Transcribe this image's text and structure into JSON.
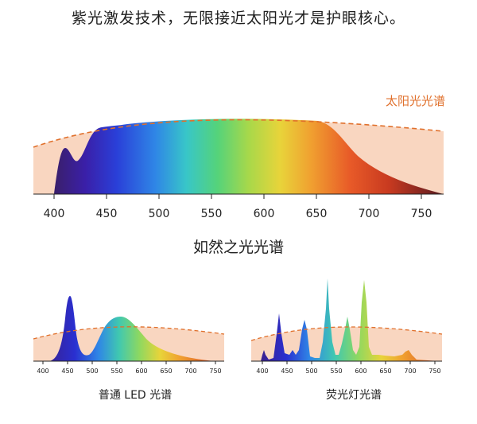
{
  "headline": "紫光激发技术，无限接近太阳光才是护眼核心。",
  "sun_label": "太阳光光谱",
  "subhead": "如然之光光谱",
  "led_caption": "普通 LED 光谱",
  "fluor_caption": "荧光灯光谱",
  "main_ticks": [
    "400",
    "450",
    "500",
    "550",
    "600",
    "650",
    "700",
    "750"
  ],
  "small_ticks": [
    "400",
    "450",
    "500",
    "550",
    "600",
    "650",
    "700",
    "750"
  ],
  "colors": {
    "sun_fill": "#f9d6c0",
    "sun_dash": "#e0702c",
    "axis": "#222222"
  }
}
